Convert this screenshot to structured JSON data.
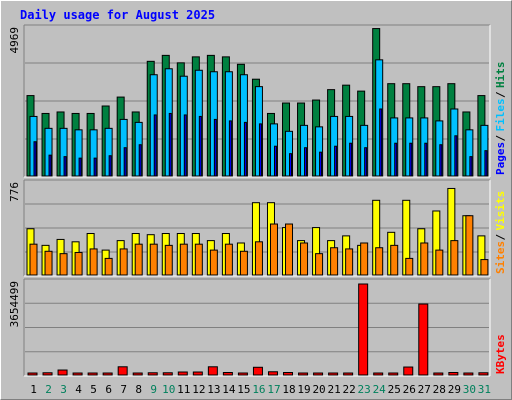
{
  "chart_data": [
    {
      "type": "bar",
      "title": "Daily usage for August 2025",
      "x": [
        "1",
        "2",
        "3",
        "4",
        "5",
        "6",
        "7",
        "8",
        "9",
        "10",
        "11",
        "12",
        "13",
        "14",
        "15",
        "16",
        "17",
        "18",
        "19",
        "20",
        "21",
        "22",
        "23",
        "24",
        "25",
        "26",
        "27",
        "28",
        "29",
        "30",
        "31"
      ],
      "weekend_days": [
        2,
        3,
        9,
        10,
        16,
        17,
        23,
        24,
        30,
        31
      ],
      "ymax_label": "4969",
      "ylabel_parts": [
        "Pages",
        "Files",
        "Hits"
      ],
      "series": [
        {
          "name": "Hits",
          "color": "#008040",
          "values": [
            2700,
            2100,
            2150,
            2100,
            2100,
            2350,
            2650,
            2150,
            3850,
            4050,
            3800,
            4000,
            4050,
            4000,
            3750,
            3250,
            2100,
            2450,
            2450,
            2550,
            2900,
            3050,
            2850,
            4950,
            3100,
            3100,
            3000,
            3000,
            3100,
            2150,
            2700
          ]
        },
        {
          "name": "Files",
          "color": "#00c0ff",
          "values": [
            2000,
            1600,
            1600,
            1550,
            1550,
            1600,
            1900,
            1800,
            3400,
            3600,
            3350,
            3550,
            3500,
            3500,
            3400,
            3000,
            1750,
            1500,
            1700,
            1650,
            2000,
            2000,
            1700,
            3900,
            1950,
            1950,
            1950,
            1850,
            2250,
            1550,
            1700
          ]
        },
        {
          "name": "Pages",
          "color": "#0000ff",
          "values": [
            1150,
            700,
            650,
            600,
            600,
            680,
            950,
            1050,
            2050,
            2100,
            2050,
            2000,
            1900,
            1850,
            1800,
            1750,
            1000,
            750,
            950,
            800,
            1000,
            1100,
            950,
            2250,
            1100,
            1100,
            1100,
            1050,
            1350,
            650,
            850
          ]
        }
      ]
    },
    {
      "type": "bar",
      "ymax_label": "776",
      "ylabel_parts": [
        "Sites",
        "Visits"
      ],
      "series": [
        {
          "name": "Visits",
          "color": "#ffff00",
          "values": [
            390,
            250,
            300,
            280,
            350,
            210,
            290,
            350,
            340,
            350,
            350,
            350,
            290,
            350,
            270,
            610,
            610,
            400,
            290,
            400,
            290,
            330,
            250,
            630,
            360,
            630,
            390,
            540,
            730,
            500,
            330,
            400
          ]
        },
        {
          "name": "Sites",
          "color": "#ff8000",
          "values": [
            260,
            200,
            180,
            190,
            220,
            140,
            220,
            260,
            260,
            250,
            260,
            260,
            210,
            260,
            200,
            280,
            430,
            430,
            270,
            180,
            230,
            220,
            270,
            230,
            250,
            140,
            270,
            210,
            290,
            500,
            130,
            210
          ]
        }
      ]
    },
    {
      "type": "bar",
      "ymax_label": "3654499",
      "ylabel_parts": [
        "KBytes"
      ],
      "series": [
        {
          "name": "KBytes",
          "color": "#ff0000",
          "values": [
            60000,
            90000,
            200000,
            50000,
            50000,
            80000,
            330000,
            70000,
            90000,
            90000,
            120000,
            120000,
            330000,
            100000,
            80000,
            310000,
            130000,
            100000,
            60000,
            70000,
            80000,
            60000,
            3654499,
            80000,
            80000,
            320000,
            2850000,
            60000,
            100000,
            80000,
            90000
          ]
        }
      ]
    }
  ]
}
